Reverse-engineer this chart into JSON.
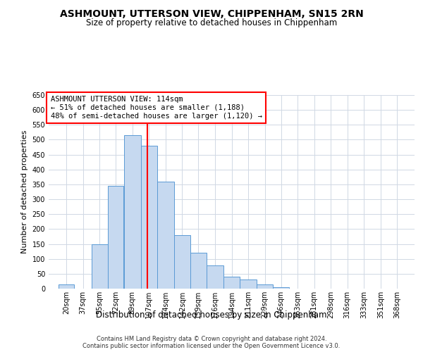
{
  "title": "ASHMOUNT, UTTERSON VIEW, CHIPPENHAM, SN15 2RN",
  "subtitle": "Size of property relative to detached houses in Chippenham",
  "xlabel": "Distribution of detached houses by size in Chippenham",
  "ylabel": "Number of detached properties",
  "footnote1": "Contains HM Land Registry data © Crown copyright and database right 2024.",
  "footnote2": "Contains public sector information licensed under the Open Government Licence v3.0.",
  "annotation_line1": "ASHMOUNT UTTERSON VIEW: 114sqm",
  "annotation_line2": "← 51% of detached houses are smaller (1,188)",
  "annotation_line3": "48% of semi-detached houses are larger (1,120) →",
  "bar_labels": [
    "20sqm",
    "37sqm",
    "55sqm",
    "72sqm",
    "89sqm",
    "107sqm",
    "124sqm",
    "142sqm",
    "159sqm",
    "176sqm",
    "194sqm",
    "211sqm",
    "229sqm",
    "246sqm",
    "263sqm",
    "281sqm",
    "298sqm",
    "316sqm",
    "333sqm",
    "351sqm",
    "368sqm"
  ],
  "bar_values": [
    15,
    0,
    150,
    345,
    515,
    480,
    360,
    180,
    120,
    78,
    40,
    30,
    15,
    5,
    0,
    0,
    0,
    0,
    0,
    0,
    0
  ],
  "bar_edges": [
    20,
    37,
    55,
    72,
    89,
    107,
    124,
    142,
    159,
    176,
    194,
    211,
    229,
    246,
    263,
    281,
    298,
    316,
    333,
    351,
    368,
    385
  ],
  "bar_color": "#c6d9f0",
  "bar_edgecolor": "#5b9bd5",
  "vline_x": 114,
  "vline_color": "#ff0000",
  "ylim": [
    0,
    650
  ],
  "yticks": [
    0,
    50,
    100,
    150,
    200,
    250,
    300,
    350,
    400,
    450,
    500,
    550,
    600,
    650
  ],
  "annotation_box_color": "#ff0000",
  "bg_color": "#ffffff",
  "grid_color": "#d0d8e4",
  "title_fontsize": 10,
  "subtitle_fontsize": 8.5,
  "ylabel_fontsize": 8,
  "xlabel_fontsize": 8.5,
  "tick_fontsize": 7,
  "annot_fontsize": 7.5,
  "footnote_fontsize": 6
}
